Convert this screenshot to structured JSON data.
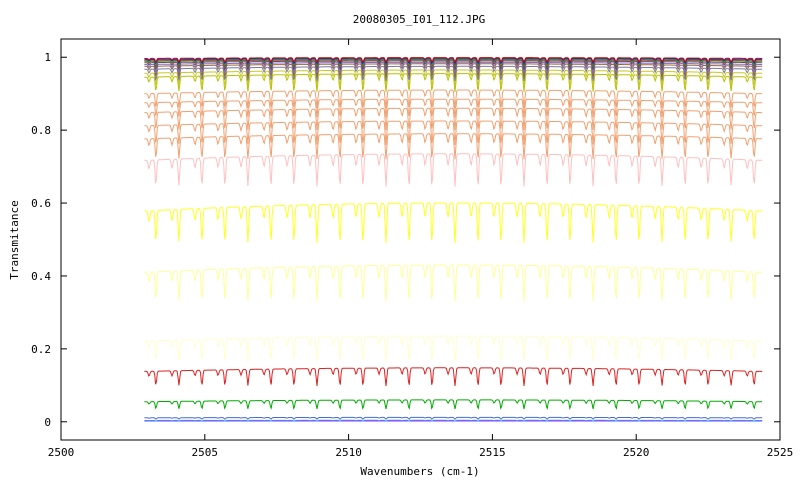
{
  "chart_data": {
    "type": "line",
    "title": "20080305_I01_112.JPG",
    "xlabel": "Wavenumbers (cm-1)",
    "ylabel": "Transmitance",
    "xlim": [
      2500,
      2525
    ],
    "ylim": [
      -0.05,
      1.05
    ],
    "x_ticks": [
      2500,
      2505,
      2510,
      2515,
      2520,
      2525
    ],
    "y_ticks": [
      0,
      0.2,
      0.4,
      0.6,
      0.8,
      1
    ],
    "y_tick_labels": [
      "0",
      "0.2",
      "0.4",
      "0.6",
      "0.8",
      "1"
    ],
    "x_range_data": [
      2502.9,
      2524.4
    ],
    "line_period_cm": 0.8,
    "grid": false,
    "series": [
      {
        "color": "#ff00ff",
        "base": 0.002,
        "depth": 0.0
      },
      {
        "color": "#00aaff",
        "base": 0.004,
        "depth": 0.002
      },
      {
        "color": "#4a6ad0",
        "base": 0.012,
        "depth": 0.005
      },
      {
        "color": "#00aa00",
        "base": 0.06,
        "depth": 0.025
      },
      {
        "color": "#dd2020",
        "base": 0.148,
        "depth": 0.05
      },
      {
        "color": "#ffffcc",
        "base": 0.235,
        "depth": 0.07
      },
      {
        "color": "#ffff99",
        "base": 0.43,
        "depth": 0.1
      },
      {
        "color": "#ffff22",
        "base": 0.6,
        "depth": 0.11
      },
      {
        "color": "#ffc0c0",
        "base": 0.735,
        "depth": 0.09
      },
      {
        "color": "#f0a070",
        "base": 0.79,
        "depth": 0.07
      },
      {
        "color": "#f0a070",
        "base": 0.825,
        "depth": 0.065
      },
      {
        "color": "#f0a070",
        "base": 0.86,
        "depth": 0.06
      },
      {
        "color": "#f0a070",
        "base": 0.885,
        "depth": 0.05
      },
      {
        "color": "#f0a070",
        "base": 0.91,
        "depth": 0.05
      },
      {
        "color": "#b8c000",
        "base": 0.955,
        "depth": 0.05
      },
      {
        "color": "#c8c820",
        "base": 0.965,
        "depth": 0.045
      },
      {
        "color": "#7777aa",
        "base": 0.975,
        "depth": 0.04
      },
      {
        "color": "#996633",
        "base": 0.982,
        "depth": 0.035
      },
      {
        "color": "#8866cc",
        "base": 0.986,
        "depth": 0.03
      },
      {
        "color": "#555555",
        "base": 0.99,
        "depth": 0.025
      },
      {
        "color": "#aa3333",
        "base": 0.993,
        "depth": 0.02
      },
      {
        "color": "#22aa22",
        "base": 0.995,
        "depth": 0.018
      },
      {
        "color": "#2222cc",
        "base": 0.997,
        "depth": 0.015
      },
      {
        "color": "#cc0000",
        "base": 0.999,
        "depth": 0.012
      }
    ]
  }
}
